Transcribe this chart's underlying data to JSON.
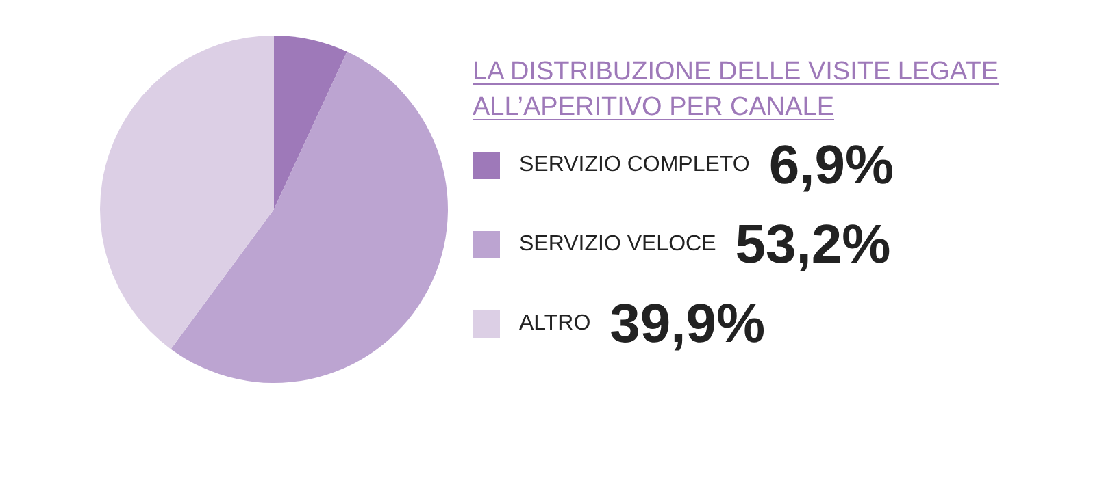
{
  "chart_data": {
    "type": "pie",
    "title": "LA DISTRIBUZIONE DELLE VISITE LEGATE ALL’APERITIVO PER CANALE",
    "categories": [
      "SERVIZIO COMPLETO",
      "SERVIZIO VELOCE",
      "ALTRO"
    ],
    "values": [
      6.9,
      53.2,
      39.9
    ],
    "value_labels": [
      "6,9%",
      "53,2%",
      "39,9%"
    ],
    "colors": [
      "#9e79b9",
      "#bca4d1",
      "#dccfe5"
    ],
    "legend": "right"
  }
}
